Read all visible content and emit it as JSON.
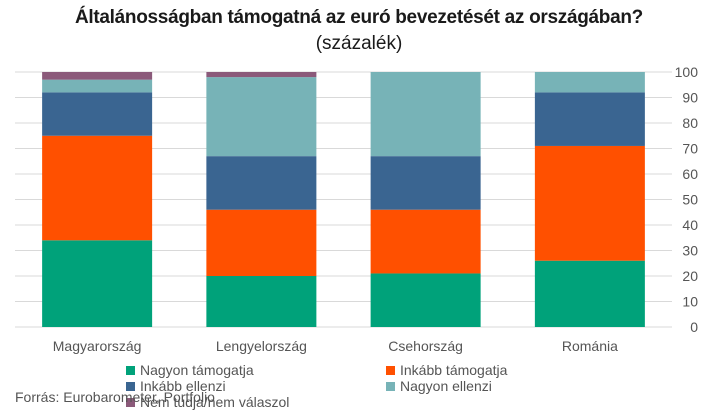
{
  "chart_data": {
    "type": "bar",
    "stacked": true,
    "title": "Általánosságban támogatná az euró bevezetését az országában?",
    "subtitle": "(százalék)",
    "categories": [
      "Magyarország",
      "Lengyelország",
      "Csehország",
      "Románia"
    ],
    "ylim": [
      0,
      100
    ],
    "yticks": [
      "0",
      "10",
      "20",
      "30",
      "40",
      "50",
      "60",
      "70",
      "80",
      "90",
      "100"
    ],
    "y_axis_side": "right",
    "grid": true,
    "legend_position": "bottom",
    "series": [
      {
        "name": "Nagyon támogatja",
        "color": "#00a27a",
        "values": [
          34,
          20,
          21,
          26
        ]
      },
      {
        "name": "Inkább támogatja",
        "color": "#ff5000",
        "values": [
          41,
          26,
          25,
          45
        ]
      },
      {
        "name": "Inkább ellenzi",
        "color": "#3a6591",
        "values": [
          17,
          21,
          21,
          21
        ]
      },
      {
        "name": "Nagyon ellenzi",
        "color": "#77b3b7",
        "values": [
          5,
          31,
          33,
          8
        ]
      },
      {
        "name": "Nem tudja/nem válaszol",
        "color": "#8b5a7a",
        "values": [
          3,
          2,
          0,
          0
        ]
      }
    ],
    "source": "Forrás: Eurobarometer, Portfolio"
  }
}
